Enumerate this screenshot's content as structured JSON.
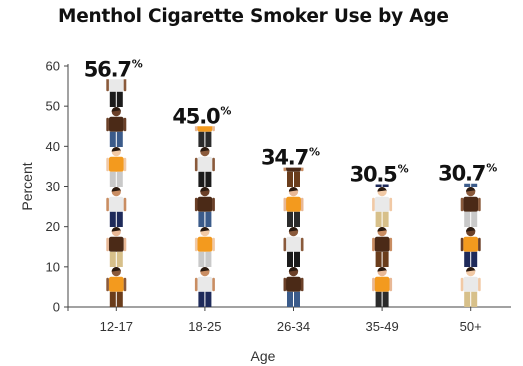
{
  "chart_data": {
    "type": "bar",
    "title": "Menthol Cigarette Smoker Use by Age",
    "xlabel": "Age",
    "ylabel": "Percent",
    "categories": [
      "12-17",
      "18-25",
      "26-34",
      "35-49",
      "50+"
    ],
    "values": [
      56.7,
      45.0,
      34.7,
      30.5,
      30.7
    ],
    "data_labels": [
      "56.7",
      "45.0",
      "34.7",
      "30.5",
      "30.7"
    ],
    "data_label_suffix": "%",
    "ylim": [
      0,
      60
    ],
    "yticks": [
      "0",
      "10",
      "20",
      "30",
      "40",
      "50",
      "60"
    ],
    "grid": false,
    "legend": "none",
    "mark_style": "stacked person pictograms"
  },
  "colors": {
    "skin": [
      "#8a5a3b",
      "#e8b896",
      "#c98d62",
      "#f1c9a5",
      "#6b4028"
    ],
    "shirts": [
      "#1f6fb4",
      "#f39a1e",
      "#8cc63f",
      "#e8472e",
      "#4b2a17",
      "#2a9d8f",
      "#a04ab4",
      "#e9e9e9",
      "#3c3c3c"
    ],
    "pants": [
      "#1e2a5a",
      "#2b2b2b",
      "#c9c9c9",
      "#6a3d1c",
      "#3b5b8a",
      "#d7c08a",
      "#1b1b1b"
    ],
    "hair": [
      "#2a1a10",
      "#4b2a17",
      "#1a1a1a",
      "#8a4b1f",
      "#d35a2a"
    ]
  }
}
